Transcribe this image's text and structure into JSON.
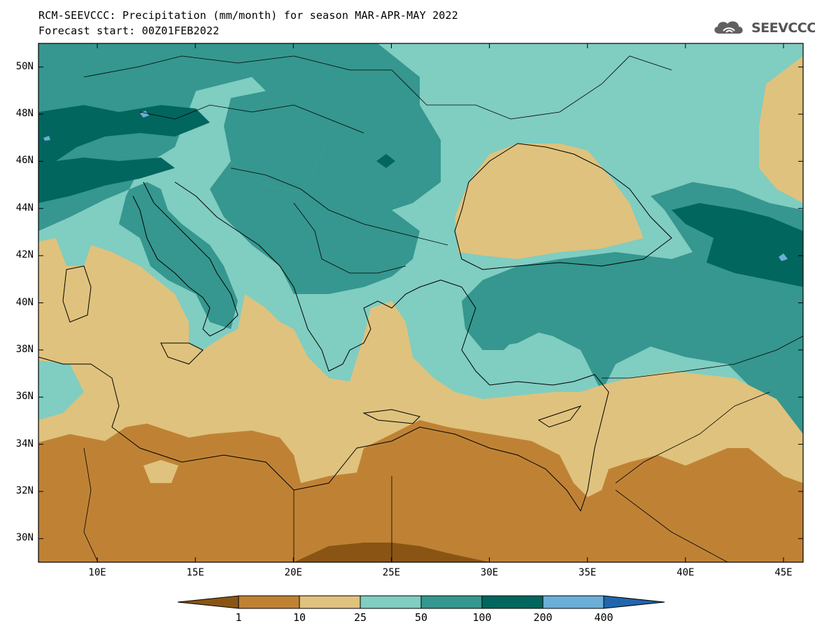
{
  "header": {
    "title_line1": "RCM-SEEVCCC: Precipitation (mm/month) for season MAR-APR-MAY 2022",
    "title_line2": "Forecast start: 00Z01FEB2022"
  },
  "logo": {
    "text": "SEEVCCC",
    "icon": "cloud-icon"
  },
  "map": {
    "variable": "Precipitation",
    "units": "mm/month",
    "season": "MAR-APR-MAY 2022",
    "lat_labels": [
      "50N",
      "48N",
      "46N",
      "44N",
      "42N",
      "40N",
      "38N",
      "36N",
      "34N",
      "32N",
      "30N"
    ],
    "lon_labels": [
      "10E",
      "15E",
      "20E",
      "25E",
      "30E",
      "35E",
      "40E",
      "45E"
    ],
    "lat_range": [
      29,
      51
    ],
    "lon_range": [
      7,
      46
    ]
  },
  "colorbar": {
    "labels": [
      "1",
      "10",
      "25",
      "50",
      "100",
      "200",
      "400"
    ],
    "colors": [
      "#8a5514",
      "#bf8235",
      "#dfc27d",
      "#80cdc1",
      "#35978f",
      "#01665e",
      "#6baed6",
      "#2166ac"
    ]
  }
}
